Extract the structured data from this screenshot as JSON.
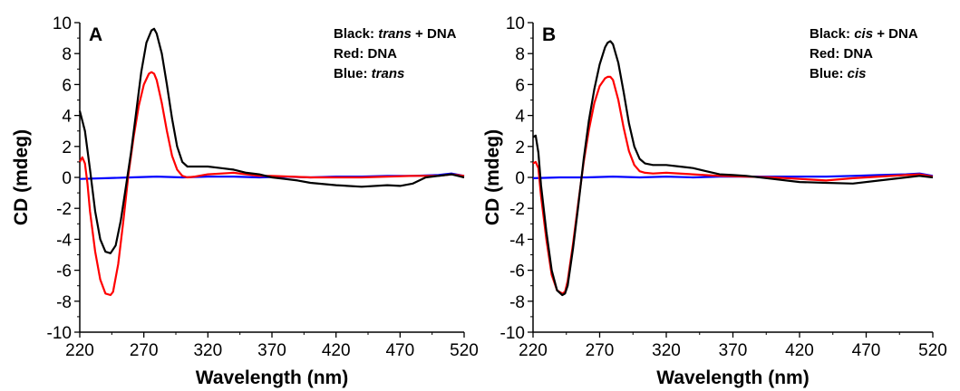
{
  "chart_data": [
    {
      "type": "line",
      "panel_label": "A",
      "xlabel": "Wavelength (nm)",
      "ylabel": "CD (mdeg)",
      "xlim": [
        220,
        520
      ],
      "ylim": [
        -10,
        10
      ],
      "x_ticks": [
        220,
        270,
        320,
        370,
        420,
        470,
        520
      ],
      "y_ticks": [
        -10,
        -8,
        -6,
        -4,
        -2,
        0,
        2,
        4,
        6,
        8,
        10
      ],
      "grid": false,
      "legend_position": "top-right",
      "legend": [
        {
          "prefix": "Black: ",
          "italic": "trans",
          "suffix": " + DNA"
        },
        {
          "prefix": "Red: ",
          "italic": "",
          "suffix": "DNA"
        },
        {
          "prefix": "Blue: ",
          "italic": "trans",
          "suffix": ""
        }
      ],
      "series": [
        {
          "color": "#000000",
          "x": [
            220,
            224,
            228,
            232,
            236,
            240,
            244,
            248,
            252,
            256,
            260,
            264,
            268,
            272,
            276,
            278,
            280,
            284,
            288,
            292,
            296,
            300,
            304,
            310,
            320,
            330,
            340,
            350,
            360,
            370,
            380,
            390,
            400,
            420,
            440,
            460,
            470,
            480,
            490,
            500,
            510,
            520
          ],
          "y": [
            4.3,
            3.0,
            0.5,
            -2.2,
            -4.0,
            -4.8,
            -4.9,
            -4.4,
            -2.8,
            -0.6,
            1.6,
            4.2,
            6.8,
            8.7,
            9.5,
            9.6,
            9.3,
            8.0,
            6.0,
            3.8,
            2.0,
            1.0,
            0.7,
            0.7,
            0.7,
            0.6,
            0.5,
            0.3,
            0.2,
            0.0,
            -0.1,
            -0.2,
            -0.35,
            -0.5,
            -0.6,
            -0.5,
            -0.55,
            -0.4,
            0.0,
            0.1,
            0.2,
            0.0
          ]
        },
        {
          "color": "#ff0000",
          "x": [
            220,
            222,
            224,
            226,
            228,
            232,
            236,
            240,
            244,
            246,
            250,
            254,
            258,
            262,
            266,
            270,
            274,
            276,
            278,
            280,
            284,
            288,
            292,
            296,
            300,
            304,
            310,
            320,
            340,
            360,
            370,
            400,
            440,
            480,
            500,
            510,
            520
          ],
          "y": [
            1.0,
            1.3,
            0.9,
            -0.4,
            -2.2,
            -4.8,
            -6.6,
            -7.5,
            -7.6,
            -7.4,
            -5.6,
            -2.8,
            0.2,
            2.6,
            4.6,
            6.0,
            6.7,
            6.8,
            6.7,
            6.3,
            4.8,
            3.0,
            1.4,
            0.5,
            0.1,
            0.0,
            0.05,
            0.2,
            0.3,
            0.1,
            0.1,
            0.0,
            0.0,
            0.1,
            0.1,
            0.2,
            0.1
          ]
        },
        {
          "color": "#0000ff",
          "x": [
            220,
            240,
            260,
            280,
            300,
            320,
            340,
            360,
            380,
            400,
            420,
            440,
            460,
            480,
            500,
            510,
            520
          ],
          "y": [
            -0.1,
            -0.05,
            0.0,
            0.05,
            0.0,
            0.05,
            0.05,
            0.0,
            0.05,
            0.0,
            0.05,
            0.05,
            0.1,
            0.1,
            0.15,
            0.25,
            0.1
          ]
        }
      ]
    },
    {
      "type": "line",
      "panel_label": "B",
      "xlabel": "Wavelength (nm)",
      "ylabel": "CD (mdeg)",
      "xlim": [
        220,
        520
      ],
      "ylim": [
        -10,
        10
      ],
      "x_ticks": [
        220,
        270,
        320,
        370,
        420,
        470,
        520
      ],
      "y_ticks": [
        -10,
        -8,
        -6,
        -4,
        -2,
        0,
        2,
        4,
        6,
        8,
        10
      ],
      "grid": false,
      "legend_position": "top-right",
      "legend": [
        {
          "prefix": "Black: ",
          "italic": "cis",
          "suffix": " + DNA"
        },
        {
          "prefix": "Red: ",
          "italic": "",
          "suffix": "DNA"
        },
        {
          "prefix": "Blue: ",
          "italic": "cis",
          "suffix": ""
        }
      ],
      "series": [
        {
          "color": "#000000",
          "x": [
            220,
            222,
            224,
            226,
            230,
            234,
            238,
            242,
            244,
            246,
            250,
            254,
            258,
            262,
            266,
            270,
            274,
            276,
            278,
            280,
            284,
            288,
            292,
            296,
            300,
            304,
            310,
            320,
            330,
            340,
            350,
            360,
            370,
            380,
            400,
            420,
            440,
            460,
            480,
            500,
            510,
            520
          ],
          "y": [
            2.6,
            2.7,
            1.6,
            -0.5,
            -3.5,
            -6.0,
            -7.3,
            -7.6,
            -7.5,
            -7.0,
            -4.6,
            -1.8,
            1.2,
            3.7,
            5.7,
            7.3,
            8.4,
            8.7,
            8.8,
            8.6,
            7.4,
            5.5,
            3.5,
            2.0,
            1.2,
            0.9,
            0.8,
            0.8,
            0.7,
            0.6,
            0.4,
            0.2,
            0.15,
            0.1,
            -0.1,
            -0.3,
            -0.35,
            -0.4,
            -0.2,
            0.0,
            0.1,
            0.0
          ]
        },
        {
          "color": "#ff0000",
          "x": [
            220,
            222,
            224,
            226,
            230,
            234,
            238,
            242,
            244,
            246,
            250,
            254,
            258,
            262,
            266,
            270,
            274,
            276,
            278,
            280,
            284,
            288,
            292,
            296,
            300,
            304,
            310,
            320,
            340,
            360,
            380,
            400,
            420,
            440,
            460,
            480,
            500,
            510,
            520
          ],
          "y": [
            0.9,
            1.0,
            0.6,
            -1.2,
            -4.0,
            -6.3,
            -7.3,
            -7.5,
            -7.4,
            -6.7,
            -4.3,
            -1.6,
            1.0,
            3.1,
            4.8,
            5.9,
            6.4,
            6.5,
            6.5,
            6.3,
            5.0,
            3.2,
            1.7,
            0.8,
            0.4,
            0.3,
            0.25,
            0.3,
            0.2,
            0.1,
            0.05,
            0.0,
            -0.1,
            -0.2,
            -0.05,
            0.05,
            0.15,
            0.2,
            0.05
          ]
        },
        {
          "color": "#0000ff",
          "x": [
            220,
            240,
            260,
            280,
            300,
            320,
            340,
            360,
            380,
            400,
            420,
            440,
            460,
            480,
            500,
            510,
            520
          ],
          "y": [
            -0.05,
            0.0,
            0.0,
            0.05,
            0.0,
            0.05,
            0.0,
            0.05,
            0.05,
            0.05,
            0.05,
            0.05,
            0.1,
            0.15,
            0.2,
            0.25,
            0.1
          ]
        }
      ]
    }
  ]
}
